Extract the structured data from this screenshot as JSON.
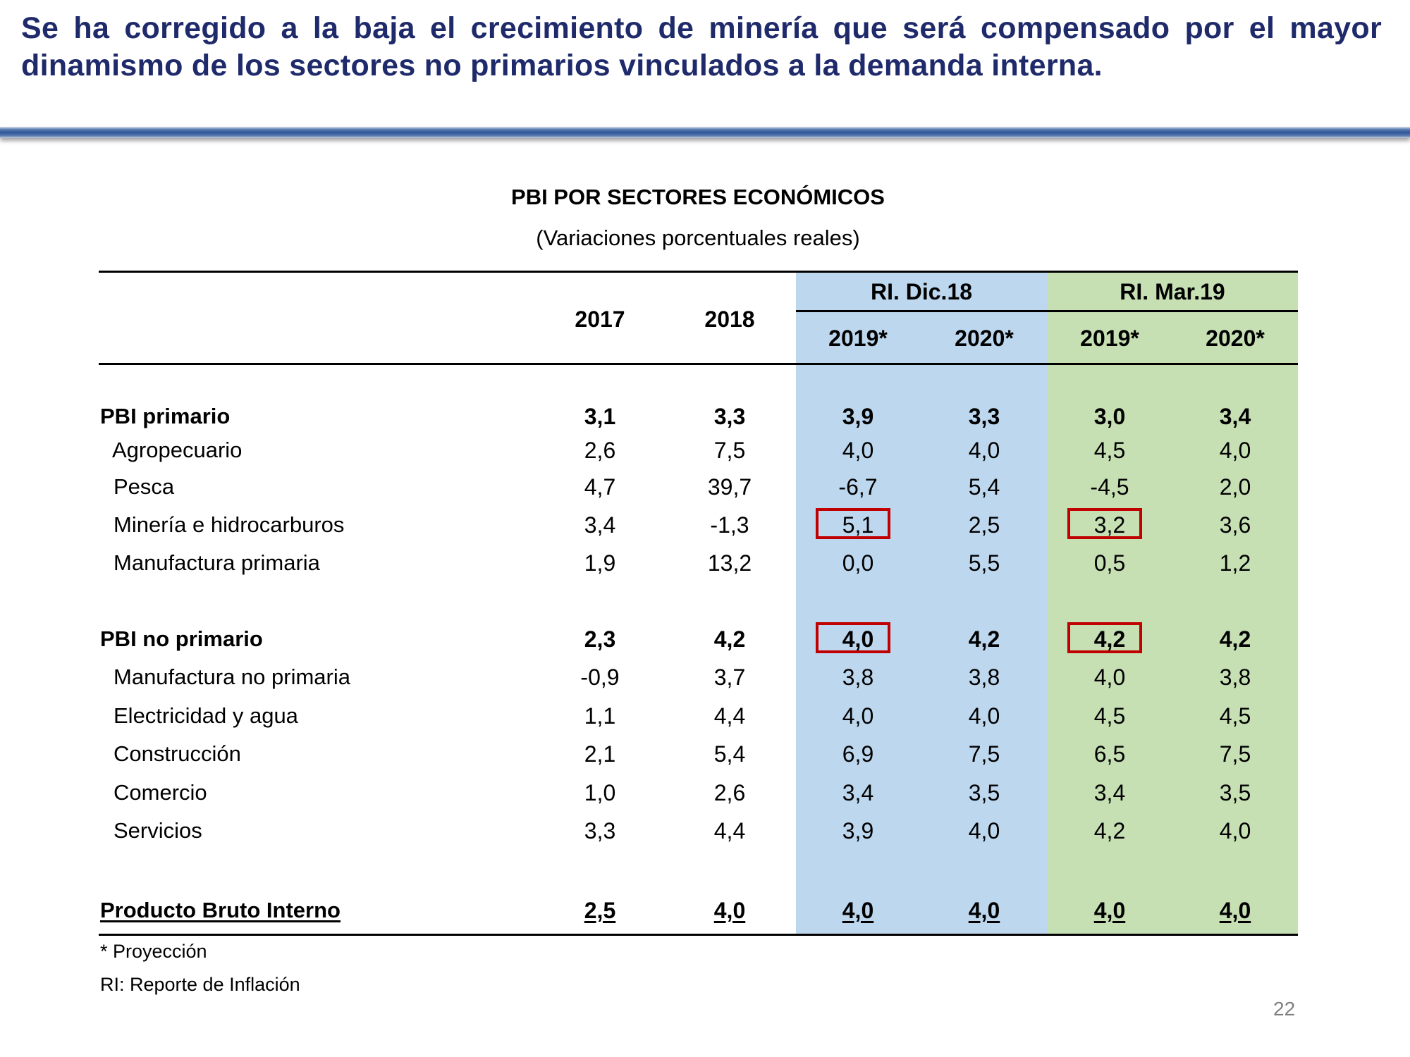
{
  "headline": "Se ha corregido a la baja el crecimiento de minería que será compensado por el mayor dinamismo de los sectores no primarios vinculados a la demanda interna.",
  "table": {
    "title": "PBI POR SECTORES ECONÓMICOS",
    "subtitle": "(Variaciones porcentuales reales)",
    "group_headers": [
      "RI. Dic.18",
      "RI. Mar.19"
    ],
    "columns": [
      "2017",
      "2018",
      "2019*",
      "2020*",
      "2019*",
      "2020*"
    ],
    "group_colors": [
      "#BDD7EE",
      "#C6E0B4"
    ],
    "rows": [
      {
        "label": "PBI primario",
        "bold": true,
        "values": [
          "3,1",
          "3,3",
          "3,9",
          "3,3",
          "3,0",
          "3,4"
        ]
      },
      {
        "label": "Agropecuario",
        "values": [
          "2,6",
          "7,5",
          "4,0",
          "4,0",
          "4,5",
          "4,0"
        ]
      },
      {
        "label": "Pesca",
        "values": [
          "4,7",
          "39,7",
          "-6,7",
          "5,4",
          "-4,5",
          "2,0"
        ]
      },
      {
        "label": "Minería e hidrocarburos",
        "values": [
          "3,4",
          "-1,3",
          "5,1",
          "2,5",
          "3,2",
          "3,6"
        ],
        "highlighted_columns": [
          2,
          4
        ]
      },
      {
        "label": "Manufactura primaria",
        "values": [
          "1,9",
          "13,2",
          "0,0",
          "5,5",
          "0,5",
          "1,2"
        ]
      },
      {
        "label": "PBI no primario",
        "bold": true,
        "values": [
          "2,3",
          "4,2",
          "4,0",
          "4,2",
          "4,2",
          "4,2"
        ],
        "highlighted_columns": [
          2,
          4
        ]
      },
      {
        "label": "Manufactura no primaria",
        "values": [
          "-0,9",
          "3,7",
          "3,8",
          "3,8",
          "4,0",
          "3,8"
        ]
      },
      {
        "label": "Electricidad y agua",
        "values": [
          "1,1",
          "4,4",
          "4,0",
          "4,0",
          "4,5",
          "4,5"
        ]
      },
      {
        "label": "Construcción",
        "values": [
          "2,1",
          "5,4",
          "6,9",
          "7,5",
          "6,5",
          "7,5"
        ]
      },
      {
        "label": "Comercio",
        "values": [
          "1,0",
          "2,6",
          "3,4",
          "3,5",
          "3,4",
          "3,5"
        ]
      },
      {
        "label": "Servicios",
        "values": [
          "3,3",
          "4,4",
          "3,9",
          "4,0",
          "4,2",
          "4,0"
        ]
      },
      {
        "label": "Producto Bruto Interno",
        "bold": true,
        "underline": true,
        "values": [
          "2,5",
          "4,0",
          "4,0",
          "4,0",
          "4,0",
          "4,0"
        ]
      }
    ],
    "highlight_color": "#C00000"
  },
  "footnotes": [
    "* Proyección",
    "RI: Reporte de Inflación"
  ],
  "page_number": "22"
}
